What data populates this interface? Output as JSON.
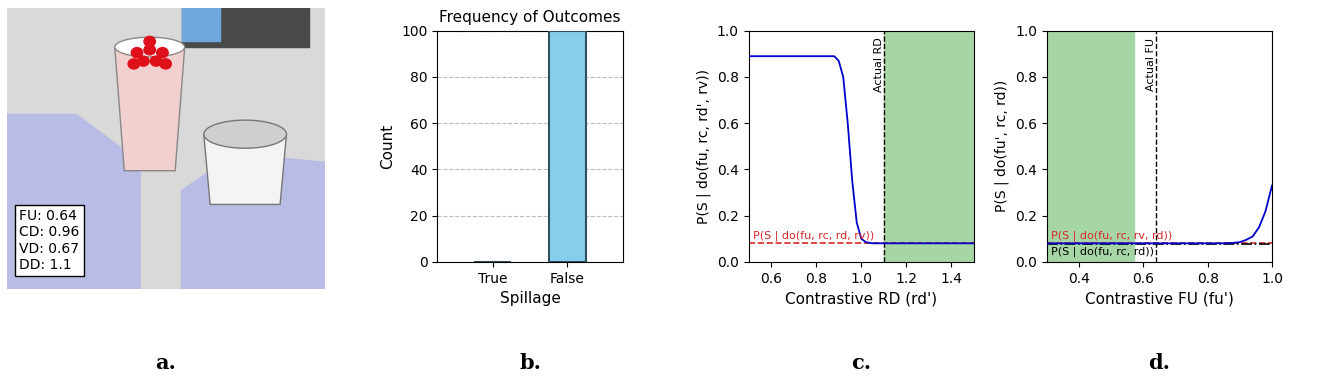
{
  "chart_data": [
    {
      "type": "image",
      "label": "a.",
      "annotations": [
        "FU: 0.64",
        "CD: 0.96",
        "VD: 0.67",
        "DD: 1.1"
      ]
    },
    {
      "type": "bar",
      "label": "b.",
      "title": "Frequency of Outcomes",
      "categories": [
        "True",
        "False"
      ],
      "values": [
        0,
        100
      ],
      "color": "#87ceeb",
      "x_label": "Spillage",
      "y_label": "Count",
      "ylim": [
        0,
        100
      ],
      "yticks": [
        0,
        20,
        40,
        60,
        80,
        100
      ],
      "grid": true
    },
    {
      "type": "line",
      "label": "c.",
      "x_label": "Contrastive RD (rd')",
      "y_label": "P(S | do(fu, rc, rd', rv))",
      "xlim": [
        0.5,
        1.5
      ],
      "xticks": [
        0.6,
        0.8,
        1.0,
        1.2,
        1.4
      ],
      "ylim": [
        0.0,
        1.0
      ],
      "yticks": [
        0.0,
        0.2,
        0.4,
        0.6,
        0.8,
        1.0
      ],
      "highlight": [
        1.1,
        1.5
      ],
      "annotations": [
        {
          "text": "Actual RD",
          "x": 1.1
        }
      ],
      "series": [
        {
          "name": "P(S | do(fu, rc, rd', rv))",
          "color": "#0000cc",
          "line_style": "solid",
          "x": [
            0.5,
            0.6,
            0.7,
            0.8,
            0.85,
            0.88,
            0.9,
            0.92,
            0.94,
            0.96,
            0.98,
            1.0,
            1.02,
            1.05,
            1.1,
            1.2,
            1.3,
            1.4,
            1.5
          ],
          "values": [
            0.89,
            0.89,
            0.89,
            0.89,
            0.89,
            0.89,
            0.87,
            0.8,
            0.6,
            0.35,
            0.17,
            0.1,
            0.085,
            0.08,
            0.08,
            0.08,
            0.08,
            0.08,
            0.08
          ]
        },
        {
          "name": "P(S | do(fu, rc, rd, rv))",
          "type": "hline",
          "color": "#d62728",
          "line_style": "dashed",
          "values": [
            0.08
          ]
        }
      ]
    },
    {
      "type": "line",
      "label": "d.",
      "x_label": "Contrastive FU (fu')",
      "y_label": "P(S | do(fu', rc, rd))",
      "xlim": [
        0.3,
        1.0
      ],
      "xticks": [
        0.4,
        0.6,
        0.8,
        1.0
      ],
      "ylim": [
        0.0,
        1.0
      ],
      "yticks": [
        0.0,
        0.2,
        0.4,
        0.6,
        0.8,
        1.0
      ],
      "highlight": [
        0.3,
        0.57
      ],
      "annotations": [
        {
          "text": "Actual FU",
          "x": 0.64
        }
      ],
      "series": [
        {
          "name": "P(S | do(fu', rc, rd))",
          "color": "#0000cc",
          "line_style": "solid",
          "x": [
            0.3,
            0.4,
            0.5,
            0.6,
            0.7,
            0.8,
            0.85,
            0.88,
            0.9,
            0.92,
            0.94,
            0.96,
            0.98,
            1.0
          ],
          "values": [
            0.08,
            0.08,
            0.08,
            0.08,
            0.08,
            0.08,
            0.08,
            0.082,
            0.085,
            0.095,
            0.11,
            0.15,
            0.22,
            0.33
          ]
        },
        {
          "name": "P(S | do(fu, rc, rv, rd))",
          "type": "hline",
          "color": "#d62728",
          "line_style": "dashed",
          "values": [
            0.08
          ]
        },
        {
          "name": "P(S | do(fu, rc, rd))",
          "type": "hline",
          "color": "#000000",
          "line_style": "dashdot",
          "values": [
            0.075
          ]
        }
      ]
    }
  ]
}
